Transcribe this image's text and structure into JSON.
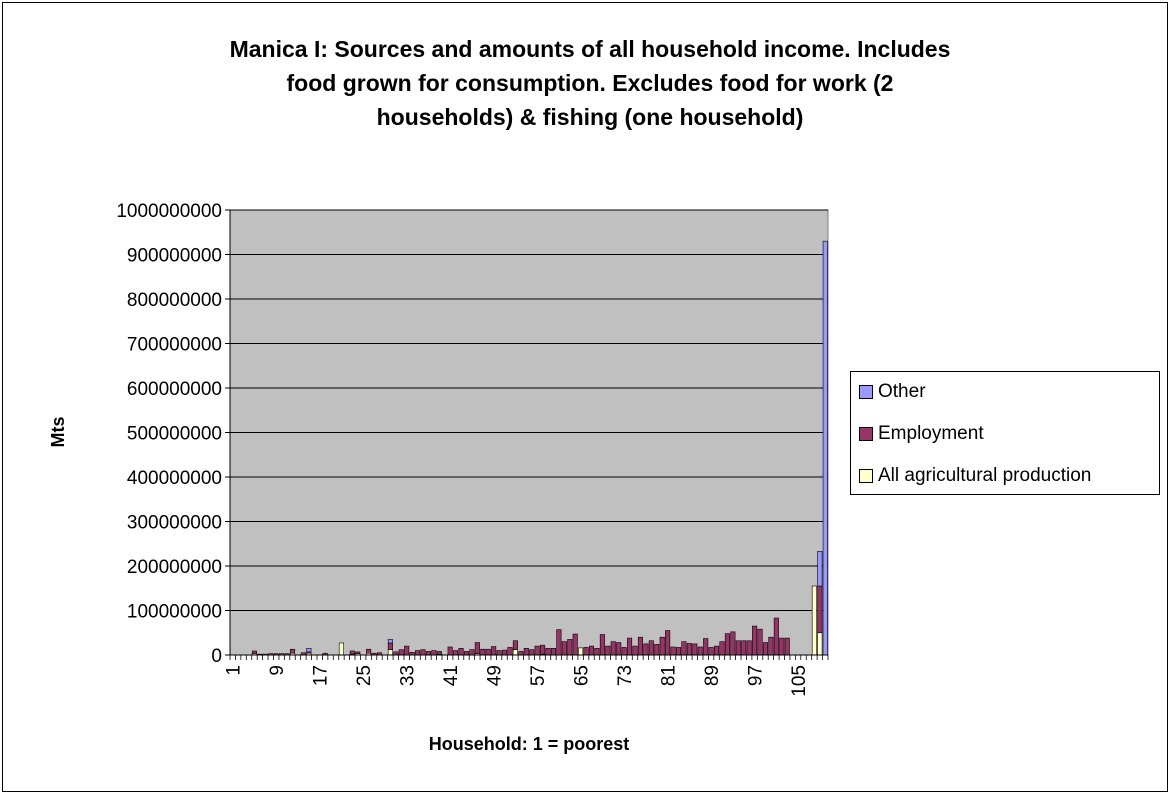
{
  "chart_data": {
    "type": "bar",
    "stacked": true,
    "title_lines": [
      "Manica I: Sources and amounts of all household income. Includes",
      "food grown for consumption. Excludes food for work (2",
      "households) & fishing (one household)"
    ],
    "xlabel": "Household: 1 = poorest",
    "ylabel": "Mts",
    "ylim": [
      0,
      1000000000
    ],
    "yticks": [
      0,
      100000000,
      200000000,
      300000000,
      400000000,
      500000000,
      600000000,
      700000000,
      800000000,
      900000000,
      1000000000
    ],
    "xtick_labels": [
      "1",
      "9",
      "17",
      "25",
      "33",
      "41",
      "49",
      "57",
      "65",
      "73",
      "81",
      "89",
      "97",
      "105"
    ],
    "categories_count": 110,
    "grid": "horizontal",
    "legend_position": "right",
    "plot_background": "#c0c0c0",
    "series": [
      {
        "name": "All agricultural production",
        "color": "#ffffcc",
        "values": [
          0,
          0,
          0,
          0,
          3000000,
          0,
          2000000,
          0,
          0,
          0,
          0,
          4000000,
          0,
          0,
          4000000,
          0,
          0,
          0,
          0,
          0,
          27000000,
          0,
          2000000,
          3000000,
          0,
          4000000,
          0,
          0,
          0,
          12000000,
          0,
          0,
          0,
          0,
          0,
          0,
          0,
          0,
          2000000,
          0,
          0,
          0,
          0,
          0,
          0,
          3000000,
          0,
          0,
          0,
          0,
          0,
          0,
          12000000,
          0,
          0,
          0,
          0,
          2000000,
          0,
          0,
          0,
          0,
          0,
          0,
          16000000,
          0,
          0,
          0,
          0,
          0,
          0,
          0,
          0,
          0,
          0,
          0,
          0,
          0,
          0,
          0,
          0,
          0,
          0,
          0,
          0,
          0,
          0,
          0,
          0,
          0,
          0,
          0,
          0,
          0,
          0,
          0,
          0,
          0,
          0,
          0,
          0,
          0,
          0,
          0,
          0,
          0,
          0,
          155000000,
          50000000,
          0
        ]
      },
      {
        "name": "Employment",
        "color": "#993366",
        "values": [
          0,
          0,
          0,
          0,
          6000000,
          2000000,
          0,
          3000000,
          3000000,
          3000000,
          3000000,
          9000000,
          0,
          5000000,
          3000000,
          0,
          0,
          4000000,
          0,
          0,
          0,
          0,
          7000000,
          4000000,
          0,
          9000000,
          4000000,
          5000000,
          0,
          15000000,
          7000000,
          12000000,
          20000000,
          6000000,
          10000000,
          12000000,
          8000000,
          10000000,
          6000000,
          0,
          18000000,
          10000000,
          15000000,
          8000000,
          12000000,
          25000000,
          13000000,
          13000000,
          19000000,
          10000000,
          11000000,
          17000000,
          20000000,
          8000000,
          15000000,
          12000000,
          20000000,
          20000000,
          15000000,
          15000000,
          57000000,
          30000000,
          35000000,
          47000000,
          0,
          17000000,
          20000000,
          15000000,
          46000000,
          20000000,
          30000000,
          28000000,
          17000000,
          38000000,
          20000000,
          40000000,
          25000000,
          32000000,
          24000000,
          40000000,
          55000000,
          18000000,
          17000000,
          30000000,
          26000000,
          25000000,
          18000000,
          37000000,
          17000000,
          20000000,
          30000000,
          48000000,
          52000000,
          32000000,
          32000000,
          32000000,
          65000000,
          58000000,
          28000000,
          40000000,
          83000000,
          38000000,
          38000000,
          0,
          0,
          0,
          0,
          0,
          105000000,
          0,
          18000000
        ]
      },
      {
        "name": "Other",
        "color": "#9999ff",
        "values": [
          0,
          0,
          0,
          0,
          0,
          0,
          0,
          0,
          0,
          0,
          0,
          0,
          0,
          0,
          8000000,
          0,
          0,
          0,
          0,
          0,
          0,
          0,
          0,
          0,
          0,
          0,
          0,
          0,
          0,
          8000000,
          0,
          0,
          0,
          0,
          0,
          0,
          0,
          0,
          0,
          0,
          0,
          0,
          0,
          0,
          0,
          0,
          0,
          0,
          0,
          0,
          0,
          0,
          0,
          0,
          0,
          0,
          0,
          0,
          0,
          0,
          0,
          0,
          0,
          0,
          0,
          0,
          0,
          0,
          0,
          0,
          0,
          0,
          0,
          0,
          0,
          0,
          0,
          0,
          0,
          0,
          0,
          0,
          0,
          0,
          0,
          0,
          0,
          0,
          0,
          0,
          0,
          0,
          0,
          0,
          0,
          0,
          0,
          0,
          0,
          0,
          0,
          0,
          0,
          0,
          0,
          0,
          0,
          0,
          78000000,
          930000000
        ]
      }
    ]
  }
}
